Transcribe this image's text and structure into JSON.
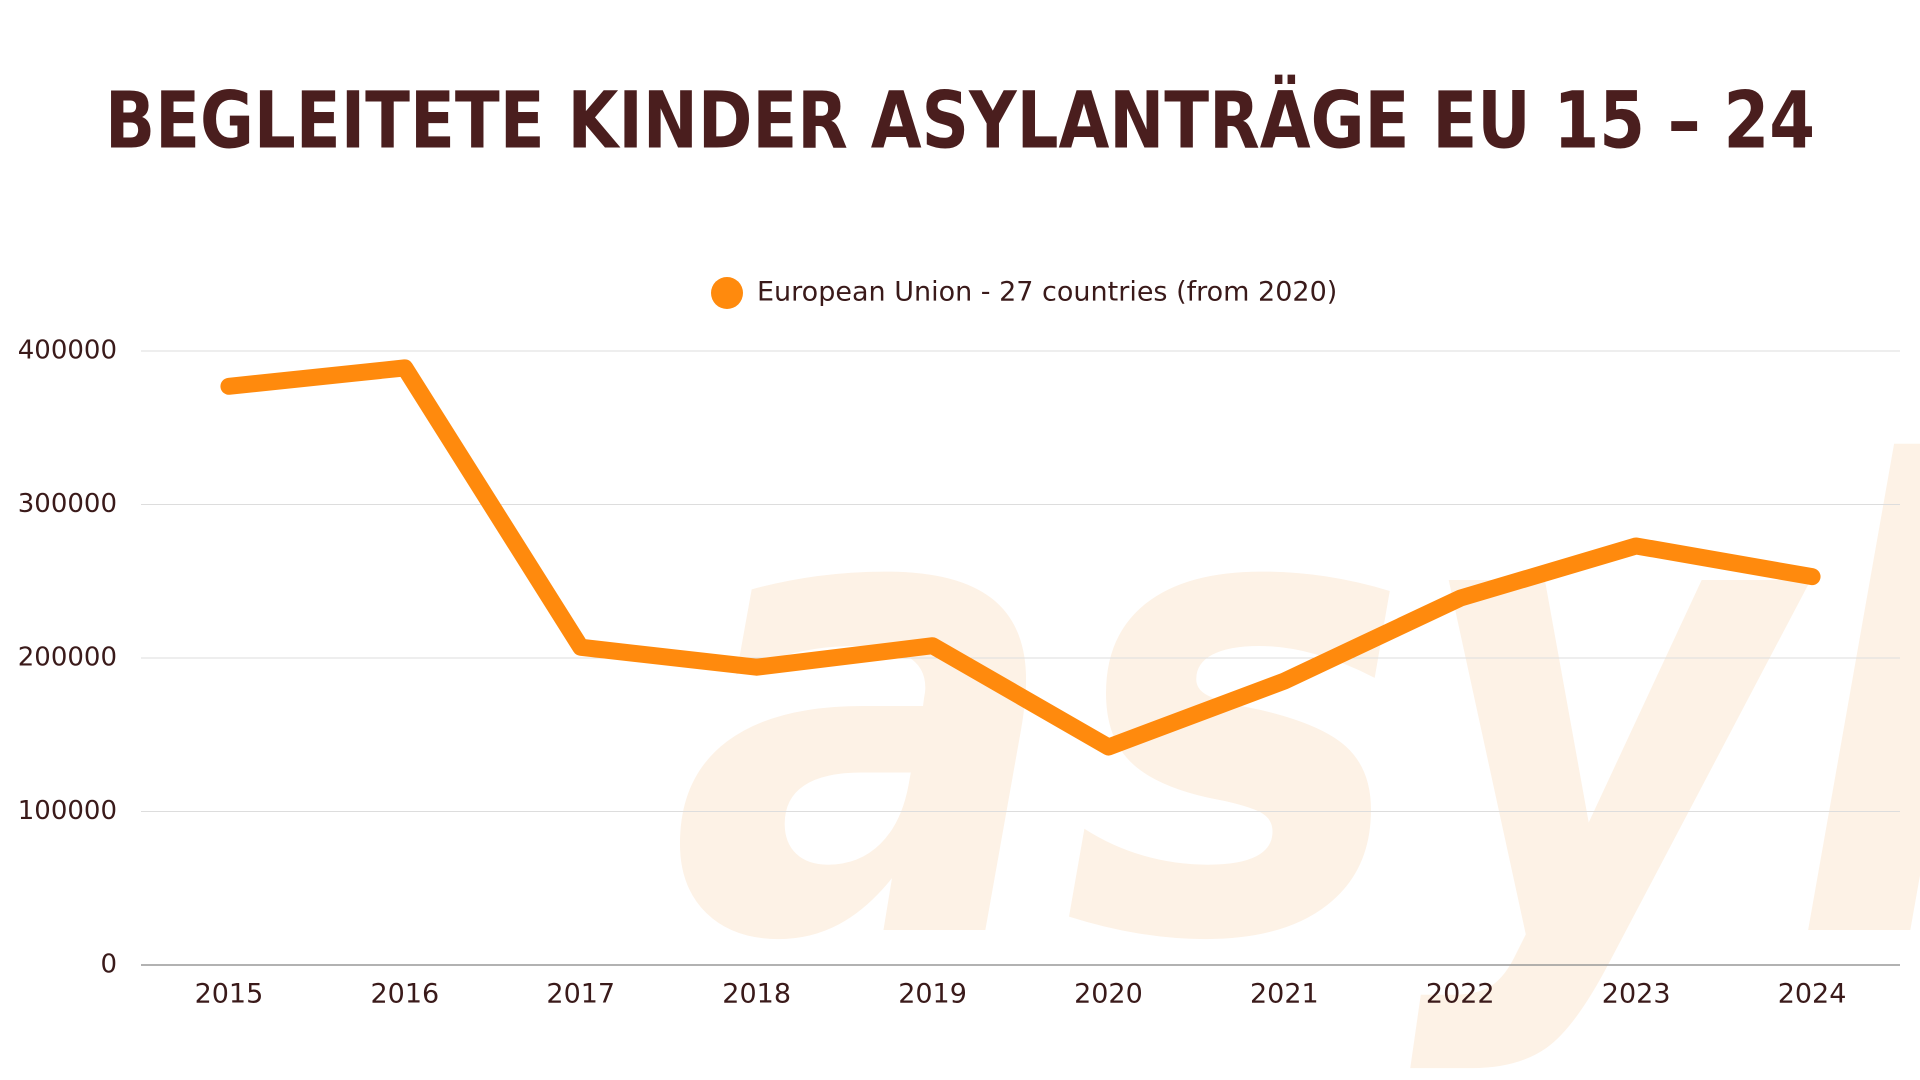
{
  "chart_data": {
    "type": "line",
    "title": "BEGLEITETE KINDER ASYLANTRÄGE EU 15 – 24",
    "watermark": "asyl",
    "categories": [
      "2015",
      "2016",
      "2017",
      "2018",
      "2019",
      "2020",
      "2021",
      "2022",
      "2023",
      "2024"
    ],
    "series": [
      {
        "name": "European Union - 27 countries (from 2020)",
        "color": "#ff8a0d",
        "values": [
          377000,
          389000,
          207000,
          194000,
          208000,
          142000,
          185000,
          239000,
          273000,
          253000
        ]
      }
    ],
    "ylim": [
      0,
      400000
    ],
    "yticks": [
      0,
      100000,
      200000,
      300000,
      400000
    ],
    "grid": true
  }
}
